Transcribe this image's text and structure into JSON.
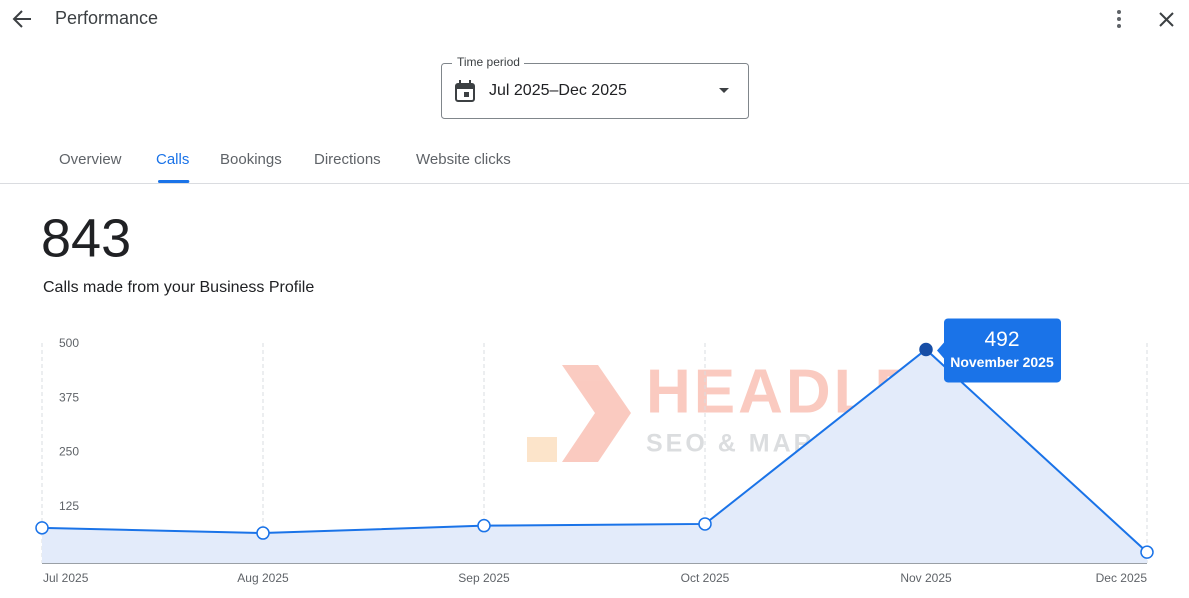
{
  "header": {
    "title": "Performance"
  },
  "time_period": {
    "label": "Time period",
    "value": "Jul 2025–Dec 2025"
  },
  "tabs": [
    "Overview",
    "Calls",
    "Bookings",
    "Directions",
    "Website clicks"
  ],
  "active_tab": 1,
  "summary": {
    "total": 843,
    "caption": "Calls made from your Business Profile"
  },
  "watermark": {
    "title": "HEADLE",
    "subtitle": "SEO & MARKETING"
  },
  "chart_data": {
    "type": "area",
    "categories": [
      "Jul 2025",
      "Aug 2025",
      "Sep 2025",
      "Oct 2025",
      "Nov 2025",
      "Dec 2025"
    ],
    "values": [
      81,
      69,
      86,
      90,
      492,
      25
    ],
    "color": "#1a73e8",
    "fill": "#e3ebfa",
    "selected": 4,
    "selected_color": "#174ea6",
    "tooltip_label": "November 2025",
    "ylim": [
      0,
      500
    ],
    "yticks": [
      125,
      250,
      375,
      500
    ],
    "grid": "vertical"
  }
}
